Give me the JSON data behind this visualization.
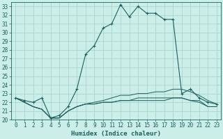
{
  "xlabel": "Humidex (Indice chaleur)",
  "bg_color": "#cceee8",
  "grid_color": "#aad4cc",
  "line_color": "#1a6060",
  "xlim": [
    -0.5,
    23.5
  ],
  "ylim": [
    20,
    33.5
  ],
  "yticks": [
    20,
    21,
    22,
    23,
    24,
    25,
    26,
    27,
    28,
    29,
    30,
    31,
    32,
    33
  ],
  "xticks": [
    0,
    1,
    2,
    3,
    4,
    5,
    6,
    7,
    8,
    9,
    10,
    11,
    12,
    13,
    14,
    15,
    16,
    17,
    18,
    19,
    20,
    21,
    22,
    23
  ],
  "series": {
    "main": [
      22.5,
      22.2,
      22.0,
      22.5,
      20.2,
      20.5,
      21.5,
      23.5,
      27.5,
      28.5,
      30.5,
      31.0,
      33.2,
      31.8,
      33.0,
      32.2,
      32.2,
      31.5,
      31.5,
      23.0,
      23.5,
      22.5,
      22.0,
      21.8
    ],
    "line2": [
      22.5,
      22.0,
      21.5,
      21.2,
      20.2,
      20.2,
      21.0,
      21.5,
      21.8,
      22.0,
      22.2,
      22.5,
      22.8,
      22.8,
      23.0,
      23.0,
      23.2,
      23.2,
      23.5,
      23.5,
      23.2,
      22.8,
      22.2,
      21.8
    ],
    "line3": [
      22.5,
      22.0,
      21.5,
      21.2,
      20.2,
      20.2,
      21.0,
      21.5,
      21.8,
      21.8,
      22.0,
      22.0,
      22.2,
      22.2,
      22.5,
      22.5,
      22.5,
      22.5,
      22.5,
      22.5,
      22.2,
      22.2,
      21.5,
      21.5
    ],
    "line4": [
      22.5,
      22.0,
      21.5,
      21.2,
      20.2,
      20.2,
      21.0,
      21.5,
      21.8,
      21.8,
      22.0,
      22.0,
      22.2,
      22.2,
      22.2,
      22.2,
      22.2,
      22.2,
      22.5,
      22.5,
      22.2,
      22.0,
      21.5,
      21.5
    ]
  }
}
